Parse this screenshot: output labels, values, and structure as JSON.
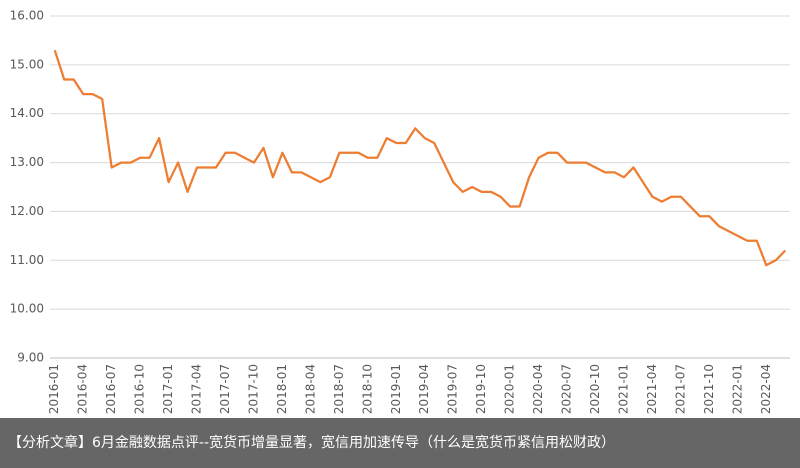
{
  "chart_data": {
    "type": "line",
    "categories": [
      "2016-01",
      null,
      null,
      "2016-04",
      null,
      null,
      "2016-07",
      null,
      null,
      "2016-10",
      null,
      null,
      "2017-01",
      null,
      null,
      "2017-04",
      null,
      null,
      "2017-07",
      null,
      null,
      "2017-10",
      null,
      null,
      "2018-01",
      null,
      null,
      "2018-04",
      null,
      null,
      "2018-07",
      null,
      null,
      "2018-10",
      null,
      null,
      "2019-01",
      null,
      null,
      "2019-04",
      null,
      null,
      "2019-07",
      null,
      null,
      "2019-10",
      null,
      null,
      "2020-01",
      null,
      null,
      "2020-04",
      null,
      null,
      "2020-07",
      null,
      null,
      "2020-10",
      null,
      null,
      "2021-01",
      null,
      null,
      "2021-04",
      null,
      null,
      "2021-07",
      null,
      null,
      "2021-10",
      null,
      null,
      "2022-01",
      null,
      null,
      "2022-04",
      null,
      null
    ],
    "values": [
      15.3,
      14.7,
      14.7,
      14.4,
      14.4,
      14.3,
      12.9,
      13.0,
      13.0,
      13.1,
      13.1,
      13.5,
      12.6,
      13.0,
      12.4,
      12.9,
      12.9,
      12.9,
      13.2,
      13.2,
      13.1,
      13.0,
      13.3,
      12.7,
      13.2,
      12.8,
      12.8,
      12.7,
      12.6,
      12.7,
      13.2,
      13.2,
      13.2,
      13.1,
      13.1,
      13.5,
      13.4,
      13.4,
      13.7,
      13.5,
      13.4,
      13.0,
      12.6,
      12.4,
      12.5,
      12.4,
      12.4,
      12.3,
      12.1,
      12.1,
      12.7,
      13.1,
      13.2,
      13.2,
      13.0,
      13.0,
      13.0,
      12.9,
      12.8,
      12.8,
      12.7,
      12.9,
      12.6,
      12.3,
      12.2,
      12.3,
      12.3,
      12.1,
      11.9,
      11.9,
      11.7,
      11.6,
      11.5,
      11.4,
      11.4,
      10.9,
      11.0,
      11.2
    ],
    "color": "#ed7d31",
    "ylim": [
      9,
      16
    ],
    "yticks": [
      {
        "value": 9,
        "label": "9.00"
      },
      {
        "value": 10,
        "label": "10.00"
      },
      {
        "value": 11,
        "label": "11.00"
      },
      {
        "value": 12,
        "label": "12.00"
      },
      {
        "value": 13,
        "label": "13.00"
      },
      {
        "value": 14,
        "label": "14.00"
      },
      {
        "value": 15,
        "label": "15.00"
      },
      {
        "value": 16,
        "label": "16.00"
      }
    ],
    "grid": true
  },
  "caption": "【分析文章】6月金融数据点评--宽货币增量显著，宽信用加速传导（什么是宽货币紧信用松财政）"
}
